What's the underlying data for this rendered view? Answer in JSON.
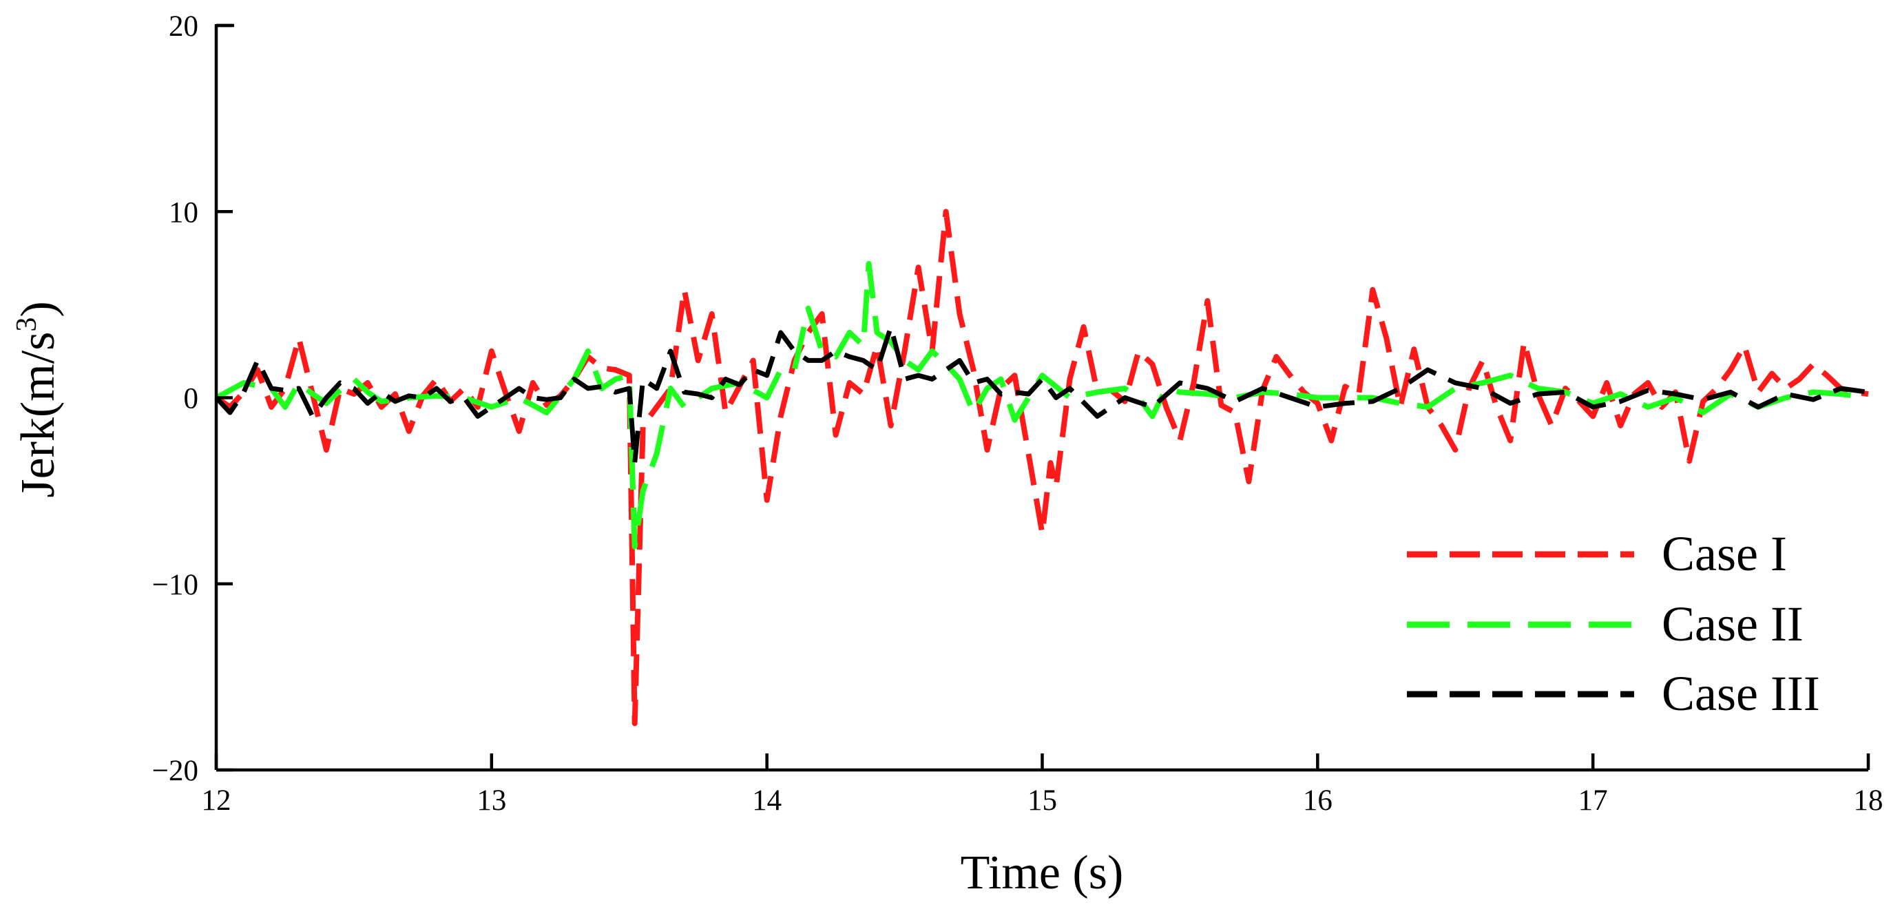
{
  "chart_data": {
    "type": "line",
    "title": "",
    "xlabel": "Time (s)",
    "ylabel_main": "Jerk(m/s",
    "ylabel_sup": "3",
    "ylabel_close": ")",
    "xlim": [
      12,
      18
    ],
    "ylim": [
      -20,
      20
    ],
    "xticks": [
      12,
      13,
      14,
      15,
      16,
      17,
      18
    ],
    "yticks": [
      -20,
      -10,
      0,
      10,
      20
    ],
    "ytick_labels": [
      "−20",
      "−10",
      "0",
      "10",
      "20"
    ],
    "legend_position": "bottom-right",
    "series": [
      {
        "name": "Case I",
        "color": "#ff1a1a",
        "dash": "dashed",
        "x": [
          12.0,
          12.05,
          12.1,
          12.15,
          12.2,
          12.25,
          12.3,
          12.35,
          12.4,
          12.45,
          12.5,
          12.55,
          12.6,
          12.65,
          12.7,
          12.75,
          12.8,
          12.85,
          12.9,
          12.95,
          13.0,
          13.05,
          13.1,
          13.15,
          13.2,
          13.25,
          13.3,
          13.35,
          13.4,
          13.45,
          13.5,
          13.52,
          13.55,
          13.6,
          13.65,
          13.7,
          13.75,
          13.8,
          13.85,
          13.9,
          13.95,
          14.0,
          14.05,
          14.1,
          14.15,
          14.2,
          14.25,
          14.3,
          14.35,
          14.4,
          14.45,
          14.5,
          14.55,
          14.6,
          14.65,
          14.7,
          14.75,
          14.8,
          14.85,
          14.9,
          14.95,
          15.0,
          15.03,
          15.05,
          15.1,
          15.15,
          15.2,
          15.25,
          15.3,
          15.35,
          15.4,
          15.45,
          15.5,
          15.55,
          15.6,
          15.65,
          15.7,
          15.75,
          15.8,
          15.85,
          15.9,
          15.95,
          16.0,
          16.05,
          16.1,
          16.15,
          16.2,
          16.25,
          16.3,
          16.35,
          16.4,
          16.45,
          16.5,
          16.55,
          16.6,
          16.65,
          16.7,
          16.75,
          16.8,
          16.85,
          16.9,
          16.95,
          17.0,
          17.05,
          17.1,
          17.15,
          17.2,
          17.25,
          17.3,
          17.35,
          17.4,
          17.45,
          17.5,
          17.55,
          17.6,
          17.65,
          17.7,
          17.75,
          17.8,
          17.85,
          17.9,
          17.95,
          18.0
        ],
        "y": [
          0,
          -0.5,
          0.3,
          1.5,
          -0.5,
          0.5,
          3.2,
          0.2,
          -2.8,
          0.5,
          0.2,
          0.8,
          -0.5,
          0.2,
          -1.8,
          0.1,
          1.0,
          -0.2,
          0.5,
          -0.5,
          2.5,
          0.3,
          -1.8,
          0.8,
          -0.4,
          0.1,
          1.0,
          2.2,
          1.6,
          1.5,
          1.2,
          -17.5,
          -1.5,
          -0.5,
          0.5,
          5.8,
          2.0,
          4.5,
          -0.8,
          0.6,
          2.0,
          -5.5,
          -1.0,
          2.0,
          3.5,
          4.5,
          -2.0,
          0.8,
          0.2,
          2.8,
          -1.5,
          2.5,
          7.0,
          2.5,
          10.0,
          4.5,
          1.5,
          -2.8,
          0.5,
          1.2,
          -3.0,
          -7.3,
          -3.5,
          -4.8,
          1.0,
          3.8,
          0.3,
          0.4,
          -0.2,
          2.5,
          1.8,
          -0.5,
          -2.3,
          0.8,
          5.2,
          -0.4,
          -0.8,
          -4.5,
          0.4,
          2.2,
          1.2,
          0.3,
          -0.3,
          -2.3,
          0.6,
          0.2,
          5.8,
          3.2,
          -0.5,
          2.6,
          -0.5,
          -1.5,
          -2.8,
          0.5,
          2.0,
          -0.5,
          -2.3,
          3.0,
          0.2,
          -1.5,
          0.5,
          -0.2,
          -1.0,
          0.8,
          -1.5,
          0.2,
          0.8,
          -0.5,
          0.3,
          -3.4,
          -0.2,
          0.5,
          1.5,
          2.8,
          0.3,
          1.3,
          0.5,
          1.0,
          1.8,
          1.2,
          0.5,
          0.3,
          0.2
        ]
      },
      {
        "name": "Case II",
        "color": "#1eff1e",
        "dash": "longdash",
        "x": [
          12.0,
          12.1,
          12.2,
          12.25,
          12.3,
          12.35,
          12.4,
          12.45,
          12.5,
          12.55,
          12.6,
          12.7,
          12.8,
          12.9,
          13.0,
          13.1,
          13.2,
          13.3,
          13.35,
          13.4,
          13.45,
          13.5,
          13.52,
          13.55,
          13.6,
          13.65,
          13.7,
          13.8,
          13.9,
          14.0,
          14.05,
          14.1,
          14.15,
          14.2,
          14.25,
          14.3,
          14.35,
          14.37,
          14.4,
          14.45,
          14.5,
          14.55,
          14.6,
          14.65,
          14.7,
          14.75,
          14.8,
          14.85,
          14.9,
          14.95,
          15.0,
          15.1,
          15.2,
          15.3,
          15.35,
          15.4,
          15.45,
          15.5,
          15.6,
          15.7,
          15.8,
          15.9,
          16.0,
          16.1,
          16.2,
          16.3,
          16.4,
          16.5,
          16.6,
          16.7,
          16.8,
          16.9,
          17.0,
          17.1,
          17.2,
          17.3,
          17.4,
          17.5,
          17.6,
          17.7,
          17.8,
          17.9,
          18.0
        ],
        "y": [
          0,
          0.8,
          0.5,
          -0.5,
          0.8,
          0.2,
          -0.3,
          0.4,
          1.0,
          0.3,
          -0.2,
          0.0,
          0.1,
          0.0,
          -0.5,
          0.0,
          -0.8,
          1.0,
          2.5,
          0.5,
          1.0,
          1.2,
          -8.0,
          -5.0,
          -3.0,
          0.5,
          -0.5,
          0.5,
          0.8,
          0.0,
          1.5,
          1.5,
          4.8,
          2.5,
          2.2,
          3.5,
          2.8,
          7.2,
          3.5,
          3.0,
          2.0,
          1.5,
          2.5,
          1.8,
          1.0,
          -0.8,
          0.5,
          1.0,
          -1.2,
          0.0,
          1.2,
          0.0,
          0.3,
          0.5,
          0.0,
          -1.0,
          0.5,
          0.3,
          0.2,
          0.0,
          0.3,
          0.2,
          0.0,
          0.0,
          0.0,
          -0.3,
          -0.5,
          0.5,
          0.8,
          1.2,
          0.5,
          0.3,
          -0.3,
          0.2,
          -0.5,
          0.0,
          -0.8,
          0.2,
          -0.5,
          0.0,
          0.3,
          0.2,
          0.0
        ]
      },
      {
        "name": "Case III",
        "color": "#000000",
        "dash": "dashed",
        "x": [
          12.0,
          12.05,
          12.1,
          12.15,
          12.2,
          12.25,
          12.3,
          12.35,
          12.4,
          12.45,
          12.5,
          12.55,
          12.6,
          12.65,
          12.7,
          12.75,
          12.8,
          12.85,
          12.9,
          12.95,
          13.0,
          13.05,
          13.1,
          13.15,
          13.2,
          13.25,
          13.3,
          13.35,
          13.4,
          13.45,
          13.5,
          13.52,
          13.55,
          13.6,
          13.65,
          13.7,
          13.75,
          13.8,
          13.85,
          13.9,
          13.95,
          14.0,
          14.05,
          14.1,
          14.15,
          14.2,
          14.25,
          14.3,
          14.35,
          14.4,
          14.45,
          14.5,
          14.55,
          14.6,
          14.65,
          14.7,
          14.75,
          14.8,
          14.85,
          14.9,
          14.95,
          15.0,
          15.05,
          15.1,
          15.2,
          15.3,
          15.4,
          15.5,
          15.6,
          15.7,
          15.8,
          15.9,
          16.0,
          16.1,
          16.2,
          16.3,
          16.4,
          16.5,
          16.6,
          16.7,
          16.8,
          16.9,
          17.0,
          17.1,
          17.2,
          17.3,
          17.4,
          17.5,
          17.6,
          17.7,
          17.8,
          17.9,
          18.0
        ],
        "y": [
          0,
          -0.8,
          0.3,
          2.0,
          0.5,
          0.4,
          0.5,
          -1.0,
          0.0,
          0.8,
          0.5,
          -0.3,
          0.3,
          -0.2,
          0.1,
          0.0,
          0.5,
          -0.2,
          0.0,
          -1.0,
          -0.5,
          0.0,
          0.5,
          0.0,
          -0.1,
          0.0,
          1.0,
          0.5,
          0.6,
          0.3,
          0.5,
          -3.5,
          1.0,
          0.5,
          2.5,
          0.3,
          0.2,
          0.0,
          1.0,
          0.7,
          1.5,
          1.2,
          3.5,
          2.5,
          2.0,
          2.0,
          2.5,
          2.2,
          2.0,
          1.5,
          3.8,
          1.0,
          1.2,
          1.0,
          1.5,
          2.0,
          0.8,
          1.0,
          0.2,
          0.3,
          0.2,
          1.0,
          0.0,
          0.5,
          -1.0,
          0.0,
          -0.5,
          0.8,
          0.5,
          -0.2,
          0.5,
          0.0,
          -0.5,
          -0.3,
          -0.2,
          0.5,
          1.5,
          0.8,
          0.5,
          -0.3,
          0.2,
          0.3,
          -0.5,
          -0.2,
          0.4,
          0.2,
          -0.1,
          0.3,
          -0.5,
          0.2,
          -0.1,
          0.5,
          0.3
        ]
      }
    ]
  }
}
